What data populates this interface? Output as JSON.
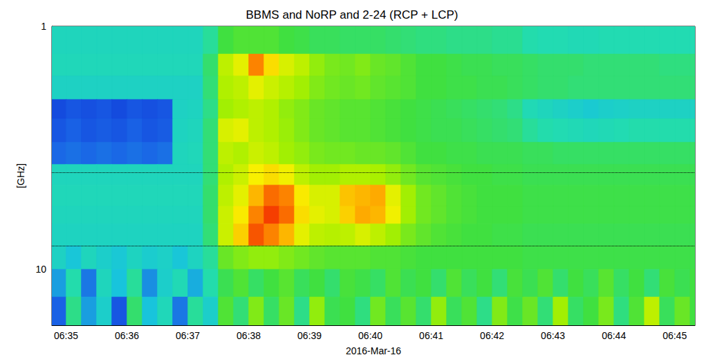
{
  "chart_data": {
    "type": "heatmap",
    "title": "BBMS and NoRP and 2-24 (RCP + LCP)",
    "x_label": "2016-Mar-16",
    "y_label": "[GHz]",
    "log": "y",
    "grid": false,
    "xlim": [
      23686,
      24320
    ],
    "ylim": [
      1,
      17
    ],
    "xticks": [
      {
        "value": 23700,
        "label": "06:35"
      },
      {
        "value": 23760,
        "label": "06:36"
      },
      {
        "value": 23820,
        "label": "06:37"
      },
      {
        "value": 23880,
        "label": "06:38"
      },
      {
        "value": 23940,
        "label": "06:39"
      },
      {
        "value": 24000,
        "label": "06:40"
      },
      {
        "value": 24060,
        "label": "06:41"
      },
      {
        "value": 24120,
        "label": "06:42"
      },
      {
        "value": 24180,
        "label": "06:43"
      },
      {
        "value": 24240,
        "label": "06:44"
      },
      {
        "value": 24300,
        "label": "06:45"
      }
    ],
    "yticks": [
      1,
      10
    ],
    "zlim": [
      0,
      1
    ],
    "reference_lines": {
      "values": [
        4,
        8
      ],
      "line_style": "dotted"
    },
    "x_edges": [
      23685,
      23700,
      23715,
      23730,
      23745,
      23760,
      23775,
      23790,
      23805,
      23820,
      23835,
      23850,
      23865,
      23880,
      23895,
      23910,
      23925,
      23940,
      23955,
      23970,
      23985,
      24000,
      24015,
      24030,
      24045,
      24060,
      24075,
      24090,
      24105,
      24120,
      24135,
      24150,
      24165,
      24180,
      24195,
      24210,
      24225,
      24240,
      24255,
      24270,
      24285,
      24300,
      24315,
      24330
    ],
    "y_edges": [
      1.0,
      1.3,
      1.6,
      2.0,
      2.4,
      3.0,
      3.7,
      4.5,
      5.5,
      6.5,
      8.0,
      10,
      13,
      17
    ],
    "cells": [
      [
        0.34,
        0.34,
        0.34,
        0.34,
        0.34,
        0.34,
        0.34,
        0.34,
        0.34,
        0.34,
        0.4,
        0.5,
        0.52,
        0.52,
        0.52,
        0.5,
        0.49,
        0.47,
        0.47,
        0.46,
        0.46,
        0.46,
        0.45,
        0.44,
        0.43,
        0.43,
        0.42,
        0.42,
        0.42,
        0.41,
        0.41,
        0.38,
        0.37,
        0.37,
        0.36,
        0.36,
        0.37,
        0.37,
        0.37,
        0.37,
        0.37,
        0.37,
        0.37
      ],
      [
        0.35,
        0.35,
        0.35,
        0.35,
        0.35,
        0.35,
        0.35,
        0.35,
        0.35,
        0.35,
        0.45,
        0.66,
        0.72,
        0.9,
        0.78,
        0.7,
        0.66,
        0.6,
        0.57,
        0.56,
        0.58,
        0.55,
        0.54,
        0.52,
        0.5,
        0.5,
        0.49,
        0.48,
        0.48,
        0.47,
        0.47,
        0.46,
        0.45,
        0.45,
        0.45,
        0.44,
        0.44,
        0.44,
        0.44,
        0.44,
        0.43,
        0.43,
        0.43
      ],
      [
        0.32,
        0.32,
        0.32,
        0.32,
        0.32,
        0.32,
        0.32,
        0.32,
        0.32,
        0.32,
        0.44,
        0.64,
        0.66,
        0.72,
        0.68,
        0.65,
        0.62,
        0.58,
        0.56,
        0.55,
        0.56,
        0.54,
        0.53,
        0.52,
        0.5,
        0.5,
        0.49,
        0.49,
        0.48,
        0.48,
        0.47,
        0.46,
        0.45,
        0.45,
        0.44,
        0.44,
        0.44,
        0.44,
        0.44,
        0.44,
        0.44,
        0.44,
        0.44
      ],
      [
        0.08,
        0.1,
        0.09,
        0.1,
        0.08,
        0.1,
        0.09,
        0.1,
        0.32,
        0.33,
        0.42,
        0.62,
        0.64,
        0.66,
        0.64,
        0.6,
        0.58,
        0.55,
        0.54,
        0.53,
        0.53,
        0.52,
        0.51,
        0.5,
        0.49,
        0.48,
        0.47,
        0.46,
        0.45,
        0.44,
        0.42,
        0.36,
        0.34,
        0.32,
        0.3,
        0.28,
        0.3,
        0.31,
        0.32,
        0.32,
        0.32,
        0.32,
        0.32
      ],
      [
        0.1,
        0.12,
        0.1,
        0.11,
        0.1,
        0.12,
        0.1,
        0.11,
        0.33,
        0.34,
        0.44,
        0.7,
        0.72,
        0.66,
        0.64,
        0.61,
        0.58,
        0.55,
        0.54,
        0.53,
        0.53,
        0.52,
        0.51,
        0.5,
        0.49,
        0.48,
        0.48,
        0.47,
        0.46,
        0.45,
        0.44,
        0.4,
        0.38,
        0.37,
        0.36,
        0.35,
        0.36,
        0.37,
        0.38,
        0.38,
        0.38,
        0.38,
        0.38
      ],
      [
        0.13,
        0.14,
        0.13,
        0.14,
        0.13,
        0.14,
        0.13,
        0.14,
        0.34,
        0.35,
        0.44,
        0.66,
        0.64,
        0.68,
        0.66,
        0.62,
        0.6,
        0.57,
        0.56,
        0.56,
        0.55,
        0.55,
        0.54,
        0.52,
        0.5,
        0.5,
        0.49,
        0.49,
        0.48,
        0.48,
        0.48,
        0.47,
        0.47,
        0.46,
        0.46,
        0.46,
        0.46,
        0.46,
        0.46,
        0.46,
        0.46,
        0.46,
        0.46
      ],
      [
        0.34,
        0.34,
        0.34,
        0.34,
        0.34,
        0.34,
        0.34,
        0.34,
        0.34,
        0.34,
        0.44,
        0.64,
        0.68,
        0.75,
        0.78,
        0.74,
        0.66,
        0.62,
        0.62,
        0.64,
        0.64,
        0.63,
        0.6,
        0.56,
        0.53,
        0.52,
        0.51,
        0.5,
        0.5,
        0.49,
        0.49,
        0.48,
        0.48,
        0.48,
        0.48,
        0.48,
        0.48,
        0.48,
        0.48,
        0.48,
        0.48,
        0.48,
        0.48
      ],
      [
        0.35,
        0.35,
        0.35,
        0.35,
        0.35,
        0.35,
        0.35,
        0.35,
        0.35,
        0.35,
        0.45,
        0.66,
        0.72,
        0.84,
        0.92,
        0.9,
        0.76,
        0.7,
        0.7,
        0.82,
        0.84,
        0.86,
        0.72,
        0.62,
        0.56,
        0.54,
        0.52,
        0.51,
        0.5,
        0.5,
        0.5,
        0.49,
        0.49,
        0.49,
        0.49,
        0.49,
        0.49,
        0.49,
        0.49,
        0.49,
        0.49,
        0.49,
        0.49
      ],
      [
        0.34,
        0.34,
        0.34,
        0.34,
        0.34,
        0.34,
        0.34,
        0.34,
        0.34,
        0.34,
        0.45,
        0.68,
        0.76,
        0.9,
        0.96,
        0.92,
        0.78,
        0.72,
        0.7,
        0.8,
        0.86,
        0.84,
        0.74,
        0.62,
        0.56,
        0.54,
        0.52,
        0.51,
        0.5,
        0.5,
        0.5,
        0.49,
        0.49,
        0.49,
        0.49,
        0.49,
        0.49,
        0.49,
        0.49,
        0.49,
        0.49,
        0.49,
        0.49
      ],
      [
        0.33,
        0.33,
        0.33,
        0.33,
        0.33,
        0.33,
        0.33,
        0.33,
        0.33,
        0.33,
        0.44,
        0.68,
        0.8,
        0.94,
        0.9,
        0.84,
        0.72,
        0.66,
        0.65,
        0.66,
        0.7,
        0.66,
        0.62,
        0.57,
        0.54,
        0.52,
        0.51,
        0.5,
        0.5,
        0.49,
        0.49,
        0.48,
        0.48,
        0.48,
        0.48,
        0.48,
        0.48,
        0.48,
        0.48,
        0.48,
        0.48,
        0.48,
        0.48
      ],
      [
        0.32,
        0.26,
        0.34,
        0.3,
        0.27,
        0.33,
        0.29,
        0.31,
        0.26,
        0.33,
        0.4,
        0.55,
        0.58,
        0.6,
        0.6,
        0.58,
        0.56,
        0.54,
        0.53,
        0.53,
        0.53,
        0.52,
        0.52,
        0.51,
        0.5,
        0.5,
        0.5,
        0.5,
        0.5,
        0.5,
        0.5,
        0.49,
        0.49,
        0.49,
        0.49,
        0.49,
        0.49,
        0.49,
        0.49,
        0.49,
        0.49,
        0.49,
        0.49
      ],
      [
        0.2,
        0.38,
        0.15,
        0.34,
        0.25,
        0.4,
        0.18,
        0.3,
        0.36,
        0.22,
        0.38,
        0.48,
        0.52,
        0.46,
        0.5,
        0.53,
        0.47,
        0.5,
        0.45,
        0.51,
        0.49,
        0.46,
        0.52,
        0.48,
        0.5,
        0.45,
        0.52,
        0.47,
        0.5,
        0.44,
        0.51,
        0.48,
        0.52,
        0.45,
        0.5,
        0.47,
        0.53,
        0.46,
        0.5,
        0.44,
        0.51,
        0.48,
        0.5
      ],
      [
        0.12,
        0.42,
        0.2,
        0.3,
        0.1,
        0.45,
        0.25,
        0.35,
        0.15,
        0.4,
        0.3,
        0.52,
        0.44,
        0.58,
        0.46,
        0.55,
        0.42,
        0.6,
        0.48,
        0.5,
        0.43,
        0.56,
        0.47,
        0.53,
        0.45,
        0.6,
        0.47,
        0.52,
        0.42,
        0.58,
        0.49,
        0.55,
        0.44,
        0.62,
        0.46,
        0.5,
        0.57,
        0.43,
        0.52,
        0.66,
        0.47,
        0.55,
        0.5
      ]
    ]
  }
}
